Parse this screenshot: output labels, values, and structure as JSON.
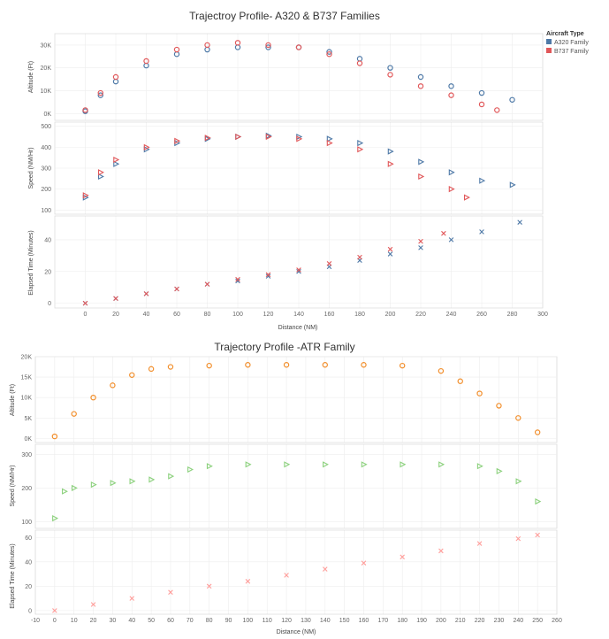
{
  "chart_data": [
    {
      "type": "scatter",
      "title": "Trajectroy Profile- A320 & B737 Families",
      "xlabel": "Distance (NM)",
      "x_ticks": [
        "0",
        "20",
        "40",
        "60",
        "80",
        "100",
        "120",
        "140",
        "160",
        "180",
        "200",
        "220",
        "240",
        "260",
        "280",
        "300"
      ],
      "xlim": [
        -20,
        300
      ],
      "legend": {
        "title": "Aircraft Type",
        "placement": "top-right",
        "items": [
          {
            "name": "A320 Family",
            "color": "#4e79a7"
          },
          {
            "name": "B737 Family",
            "color": "#e15759"
          }
        ]
      },
      "panels": [
        {
          "ylabel": "Altitude (Ft)",
          "ylim": [
            -3000,
            35000
          ],
          "y_ticks": [
            {
              "v": 0,
              "label": "0K"
            },
            {
              "v": 10000,
              "label": "10K"
            },
            {
              "v": 20000,
              "label": "20K"
            },
            {
              "v": 30000,
              "label": "30K"
            }
          ],
          "marker": "circle",
          "series": [
            {
              "name": "A320 Family",
              "x": [
                0,
                10,
                20,
                40,
                60,
                80,
                100,
                120,
                140,
                160,
                180,
                200,
                220,
                240,
                260,
                280
              ],
              "y": [
                1000,
                8000,
                14000,
                21000,
                26000,
                28000,
                29000,
                29000,
                29000,
                27000,
                24000,
                20000,
                16000,
                12000,
                9000,
                6000
              ]
            },
            {
              "name": "B737 Family",
              "x": [
                0,
                10,
                20,
                40,
                60,
                80,
                100,
                120,
                140,
                160,
                180,
                200,
                220,
                240,
                260,
                270
              ],
              "y": [
                1500,
                9000,
                16000,
                23000,
                28000,
                30000,
                31000,
                30000,
                29000,
                26000,
                22000,
                17000,
                12000,
                8000,
                4000,
                1500
              ]
            }
          ]
        },
        {
          "ylabel": "Speed (NM/Hr)",
          "ylim": [
            80,
            520
          ],
          "y_ticks": [
            {
              "v": 100,
              "label": "100"
            },
            {
              "v": 200,
              "label": "200"
            },
            {
              "v": 300,
              "label": "300"
            },
            {
              "v": 400,
              "label": "400"
            },
            {
              "v": 500,
              "label": "500"
            }
          ],
          "marker": "triangle",
          "series": [
            {
              "name": "A320 Family",
              "x": [
                0,
                10,
                20,
                40,
                60,
                80,
                100,
                120,
                140,
                160,
                180,
                200,
                220,
                240,
                260,
                280
              ],
              "y": [
                160,
                260,
                320,
                390,
                420,
                440,
                450,
                455,
                450,
                440,
                420,
                380,
                330,
                280,
                240,
                220
              ]
            },
            {
              "name": "B737 Family",
              "x": [
                0,
                10,
                20,
                40,
                60,
                80,
                100,
                120,
                140,
                160,
                180,
                200,
                220,
                240,
                250
              ],
              "y": [
                170,
                280,
                340,
                400,
                430,
                445,
                450,
                450,
                440,
                420,
                390,
                320,
                260,
                200,
                160
              ]
            }
          ]
        },
        {
          "ylabel": "Elapsed Time (Minutes)",
          "ylim": [
            -3,
            55
          ],
          "y_ticks": [
            {
              "v": 0,
              "label": "0"
            },
            {
              "v": 20,
              "label": "20"
            },
            {
              "v": 40,
              "label": "40"
            }
          ],
          "marker": "cross",
          "series": [
            {
              "name": "A320 Family",
              "x": [
                0,
                20,
                40,
                60,
                80,
                100,
                120,
                140,
                160,
                180,
                200,
                220,
                240,
                260,
                285
              ],
              "y": [
                0,
                3,
                6,
                9,
                12,
                14,
                17,
                20,
                23,
                27,
                31,
                35,
                40,
                45,
                51
              ]
            },
            {
              "name": "B737 Family",
              "x": [
                0,
                20,
                40,
                60,
                80,
                100,
                120,
                140,
                160,
                180,
                200,
                220,
                235
              ],
              "y": [
                0,
                3,
                6,
                9,
                12,
                15,
                18,
                21,
                25,
                29,
                34,
                39,
                44
              ]
            }
          ]
        }
      ]
    },
    {
      "type": "scatter",
      "title": "Trajectory Profile -ATR Family",
      "xlabel": "Distance (NM)",
      "x_ticks": [
        "-10",
        "0",
        "10",
        "20",
        "30",
        "40",
        "50",
        "60",
        "70",
        "80",
        "90",
        "100",
        "110",
        "120",
        "130",
        "140",
        "150",
        "160",
        "170",
        "180",
        "190",
        "200",
        "210",
        "220",
        "230",
        "240",
        "250",
        "260"
      ],
      "xlim": [
        -10,
        260
      ],
      "panels": [
        {
          "ylabel": "Altitude (Ft)",
          "ylim": [
            -1000,
            20000
          ],
          "y_ticks": [
            {
              "v": 0,
              "label": "0K"
            },
            {
              "v": 5000,
              "label": "5K"
            },
            {
              "v": 10000,
              "label": "10K"
            },
            {
              "v": 15000,
              "label": "15K"
            },
            {
              "v": 20000,
              "label": "20K"
            }
          ],
          "marker": "circle",
          "series": [
            {
              "name": "",
              "color": "#f28e2b",
              "x": [
                0,
                10,
                20,
                30,
                40,
                50,
                60,
                80,
                100,
                120,
                140,
                160,
                180,
                200,
                210,
                220,
                230,
                240,
                250
              ],
              "y": [
                500,
                6000,
                10000,
                13000,
                15500,
                17000,
                17500,
                17800,
                18000,
                18000,
                18000,
                18000,
                17800,
                16500,
                14000,
                11000,
                8000,
                5000,
                1500
              ]
            }
          ]
        },
        {
          "ylabel": "Speed (NM/Hr)",
          "ylim": [
            80,
            330
          ],
          "y_ticks": [
            {
              "v": 100,
              "label": "100"
            },
            {
              "v": 200,
              "label": "200"
            },
            {
              "v": 300,
              "label": "300"
            }
          ],
          "marker": "triangle",
          "series": [
            {
              "name": "",
              "color": "#8cd17d",
              "x": [
                0,
                5,
                10,
                20,
                30,
                40,
                50,
                60,
                70,
                80,
                100,
                120,
                140,
                160,
                180,
                200,
                220,
                230,
                240,
                250
              ],
              "y": [
                110,
                190,
                200,
                210,
                215,
                220,
                225,
                235,
                255,
                265,
                270,
                270,
                270,
                270,
                270,
                270,
                265,
                250,
                220,
                160
              ]
            }
          ]
        },
        {
          "ylabel": "Elapsed Time (Minutes)",
          "ylim": [
            -3,
            66
          ],
          "y_ticks": [
            {
              "v": 0,
              "label": "0"
            },
            {
              "v": 20,
              "label": "20"
            },
            {
              "v": 40,
              "label": "40"
            },
            {
              "v": 60,
              "label": "60"
            }
          ],
          "marker": "cross",
          "series": [
            {
              "name": "",
              "color": "#ff9d9a",
              "x": [
                0,
                20,
                40,
                60,
                80,
                100,
                120,
                140,
                160,
                180,
                200,
                220,
                240,
                250
              ],
              "y": [
                0,
                5,
                10,
                15,
                20,
                24,
                29,
                34,
                39,
                44,
                49,
                55,
                59,
                62
              ]
            }
          ]
        }
      ]
    }
  ]
}
